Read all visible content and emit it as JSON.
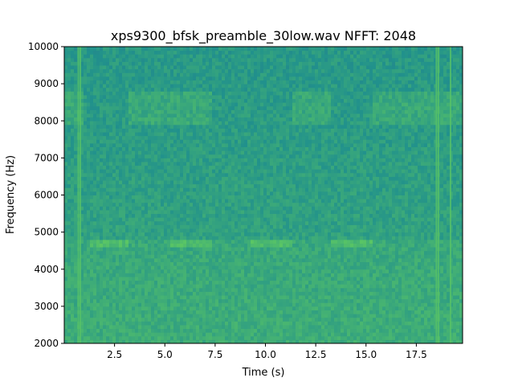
{
  "chart_data": {
    "type": "heatmap",
    "title": "xps9300_bfsk_preamble_30low.wav  NFFT: 2048",
    "xlabel": "Time (s)",
    "ylabel": "Frequency (Hz)",
    "xlim": [
      0,
      19.8
    ],
    "ylim": [
      2000,
      10000
    ],
    "x_ticks": [
      2.5,
      5.0,
      7.5,
      10.0,
      12.5,
      15.0,
      17.5
    ],
    "x_tick_labels": [
      "2.5",
      "5.0",
      "7.5",
      "10.0",
      "12.5",
      "15.0",
      "17.5"
    ],
    "y_ticks": [
      2000,
      3000,
      4000,
      5000,
      6000,
      7000,
      8000,
      9000,
      10000
    ],
    "y_tick_labels": [
      "2000",
      "3000",
      "4000",
      "5000",
      "6000",
      "7000",
      "8000",
      "9000",
      "10000"
    ],
    "grid": false,
    "colormap": "viridis",
    "background_color": "#26a186",
    "features": {
      "tone_bursts_7900_to_8800hz": [
        [
          0.0,
          1.0
        ],
        [
          3.2,
          7.3
        ],
        [
          11.3,
          13.3
        ],
        [
          15.3,
          19.8
        ]
      ],
      "tone_bursts_4700hz": [
        [
          1.2,
          3.2
        ],
        [
          5.2,
          7.3
        ],
        [
          9.3,
          11.3
        ],
        [
          13.3,
          15.3
        ]
      ],
      "vertical_transients_s": [
        0.7,
        0.8,
        18.5,
        18.6,
        19.2
      ]
    }
  }
}
